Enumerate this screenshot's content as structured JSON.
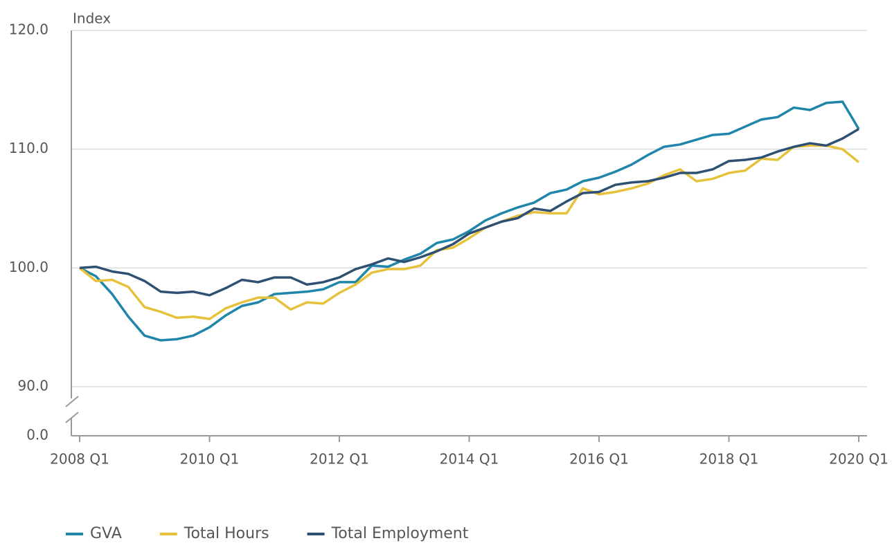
{
  "chart_data": {
    "type": "line",
    "y_label": "Index",
    "categories": [
      "2008 Q1",
      null,
      null,
      null,
      null,
      null,
      null,
      null,
      "2010 Q1",
      null,
      null,
      null,
      null,
      null,
      null,
      null,
      "2012 Q1",
      null,
      null,
      null,
      null,
      null,
      null,
      null,
      "2014 Q1",
      null,
      null,
      null,
      null,
      null,
      null,
      null,
      "2016 Q1",
      null,
      null,
      null,
      null,
      null,
      null,
      null,
      "2018 Q1",
      null,
      null,
      null,
      null,
      null,
      null,
      null,
      "2020 Q1"
    ],
    "series": [
      {
        "name": "GVA",
        "color": "#1f86aa",
        "values": [
          100,
          99.3,
          97.8,
          95.9,
          94.3,
          93.9,
          94.0,
          94.3,
          95.0,
          96.0,
          96.8,
          97.1,
          97.8,
          97.9,
          98.0,
          98.2,
          98.8,
          98.8,
          100.2,
          100.1,
          100.7,
          101.2,
          102.1,
          102.4,
          103.1,
          104.0,
          104.6,
          105.1,
          105.5,
          106.3,
          106.6,
          107.3,
          107.6,
          108.1,
          108.7,
          109.5,
          110.2,
          110.4,
          110.8,
          111.2,
          111.3,
          111.9,
          112.5,
          112.7,
          113.5,
          113.3,
          113.9,
          114.0,
          111.7
        ]
      },
      {
        "name": "Total Hours",
        "color": "#e6c23c",
        "values": [
          100,
          98.9,
          99.0,
          98.4,
          96.7,
          96.3,
          95.8,
          95.9,
          95.7,
          96.6,
          97.1,
          97.5,
          97.5,
          96.5,
          97.1,
          97.0,
          97.9,
          98.6,
          99.6,
          99.9,
          99.9,
          100.2,
          101.5,
          101.7,
          102.5,
          103.4,
          103.9,
          104.4,
          104.7,
          104.6,
          104.6,
          106.7,
          106.2,
          106.4,
          106.7,
          107.1,
          107.8,
          108.3,
          107.3,
          107.5,
          108.0,
          108.2,
          109.2,
          109.1,
          110.2,
          110.3,
          110.3,
          110.0,
          108.9
        ]
      },
      {
        "name": "Total Employment",
        "color": "#2e5072",
        "values": [
          100,
          100.1,
          99.7,
          99.5,
          98.9,
          98.0,
          97.9,
          98.0,
          97.7,
          98.3,
          99.0,
          98.8,
          99.2,
          99.2,
          98.6,
          98.8,
          99.2,
          99.9,
          100.3,
          100.8,
          100.5,
          100.9,
          101.4,
          102.0,
          102.9,
          103.4,
          103.9,
          104.2,
          105.0,
          104.8,
          105.6,
          106.3,
          106.4,
          107.0,
          107.2,
          107.3,
          107.6,
          108.0,
          108.0,
          108.3,
          109.0,
          109.1,
          109.3,
          109.8,
          110.2,
          110.5,
          110.3,
          110.9,
          111.7
        ]
      }
    ],
    "ylim": [
      0,
      120
    ],
    "yticks": [
      {
        "value": 0,
        "label": "0.0"
      },
      {
        "value": 90,
        "label": "90.0"
      },
      {
        "value": 100,
        "label": "100.0"
      },
      {
        "value": 110,
        "label": "110.0"
      },
      {
        "value": 120,
        "label": "120.0"
      }
    ],
    "axis_break": true,
    "grid": true
  }
}
